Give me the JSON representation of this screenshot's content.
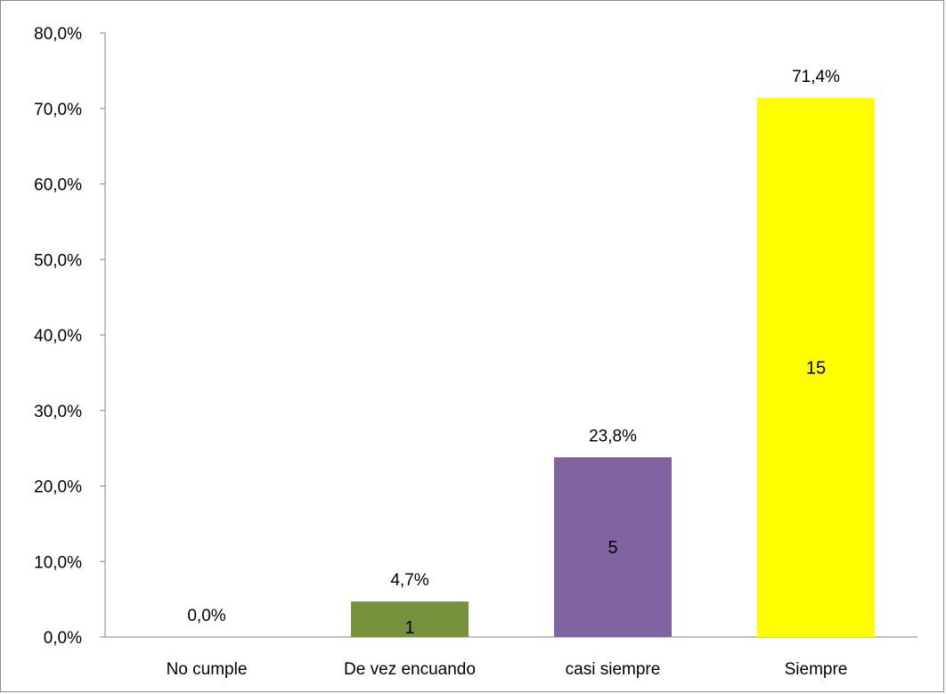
{
  "chart_data": {
    "type": "bar",
    "categories": [
      "No cumple",
      "De vez encuando",
      "casi siempre",
      "Siempre"
    ],
    "values": [
      0.0,
      4.7,
      23.8,
      71.4
    ],
    "value_labels": [
      "0,0%",
      "4,7%",
      "23,8%",
      "71,4%"
    ],
    "counts": [
      null,
      "1",
      "5",
      "15"
    ],
    "colors": [
      "#4f81bd",
      "#76923c",
      "#8064a2",
      "#ffff00"
    ],
    "ylim": [
      0,
      80
    ],
    "yticks": [
      0,
      10,
      20,
      30,
      40,
      50,
      60,
      70,
      80
    ],
    "ytick_labels": [
      "0,0%",
      "10,0%",
      "20,0%",
      "30,0%",
      "40,0%",
      "50,0%",
      "60,0%",
      "70,0%",
      "80,0%"
    ],
    "grid": false,
    "legend": "none"
  }
}
